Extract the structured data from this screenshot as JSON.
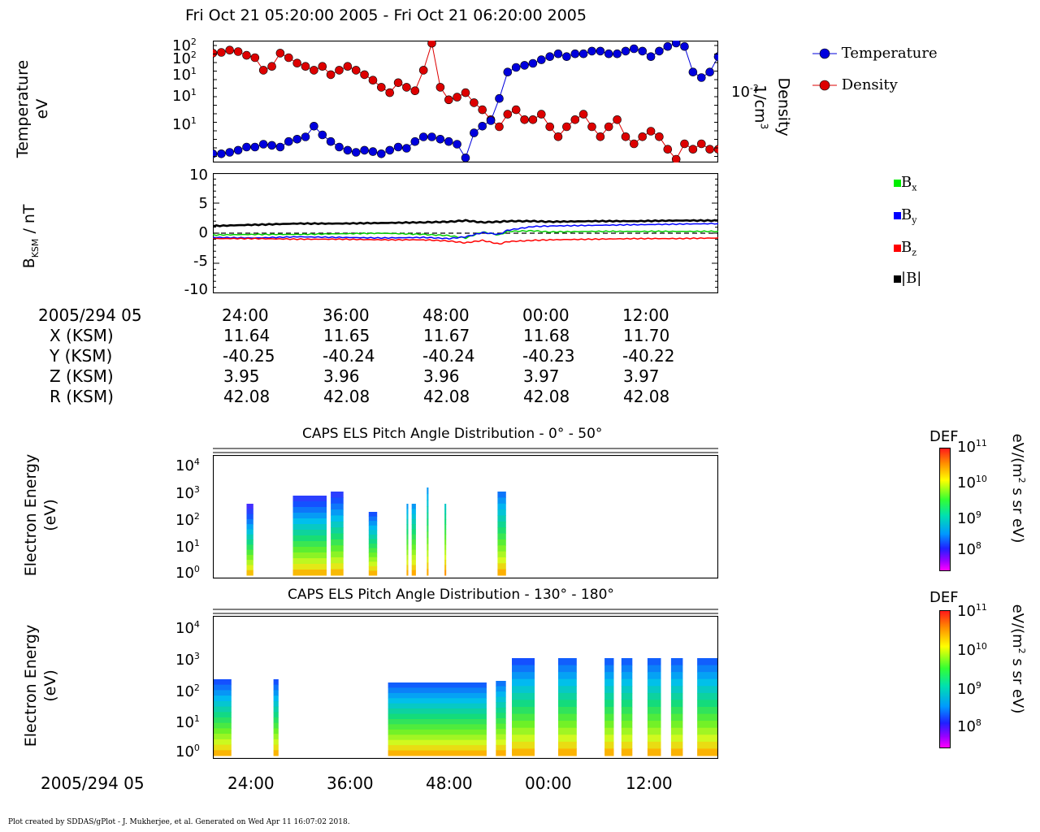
{
  "header": {
    "title": "Fri Oct 21 05:20:00 2005 - Fri Oct 21 06:20:00 2005"
  },
  "panel1": {
    "ylabel_line1": "Temperature",
    "ylabel_line2": "eV",
    "y2label_line1": "Density",
    "y2label_line2": "1/cm",
    "y2label_sup": "3",
    "y2tick_base": "10",
    "y2tick_exp": "-2",
    "yticks": [
      {
        "base": "10",
        "exp": "2"
      },
      {
        "base": "10",
        "exp": "2"
      },
      {
        "base": "10",
        "exp": "1"
      },
      {
        "base": "10",
        "exp": "1"
      },
      {
        "base": "10",
        "exp": "1"
      }
    ]
  },
  "panel2": {
    "ylabel_main": "B",
    "ylabel_sub": "KSM",
    "ylabel_rest": " / nT",
    "yticks": [
      "10",
      "5",
      "0",
      "-5",
      "-10"
    ]
  },
  "legend": {
    "temperature": "Temperature",
    "density": "Density",
    "bx_base": "B",
    "bx_sub": "x",
    "by_base": "B",
    "by_sub": "y",
    "bz_base": "B",
    "bz_sub": "z",
    "bmag": "|B|"
  },
  "ephemeris": {
    "epoch": "2005/294 05",
    "rows": [
      {
        "label": "X (KSM)",
        "values": [
          "11.64",
          "11.65",
          "11.67",
          "11.68",
          "11.70"
        ]
      },
      {
        "label": "Y (KSM)",
        "values": [
          "-40.25",
          "-40.24",
          "-40.24",
          "-40.23",
          "-40.22"
        ]
      },
      {
        "label": "Z (KSM)",
        "values": [
          "3.95",
          "3.96",
          "3.96",
          "3.97",
          "3.97"
        ]
      },
      {
        "label": "R (KSM)",
        "values": [
          "42.08",
          "42.08",
          "42.08",
          "42.08",
          "42.08"
        ]
      }
    ],
    "times": [
      "24:00",
      "36:00",
      "48:00",
      "00:00",
      "12:00"
    ]
  },
  "spec1": {
    "title": "CAPS ELS Pitch Angle Distribution - 0° - 50°",
    "ylabel_line1": "Electron Energy",
    "ylabel_line2": "(eV)",
    "yticks": [
      {
        "base": "10",
        "exp": "4"
      },
      {
        "base": "10",
        "exp": "3"
      },
      {
        "base": "10",
        "exp": "2"
      },
      {
        "base": "10",
        "exp": "1"
      },
      {
        "base": "10",
        "exp": "0"
      }
    ]
  },
  "spec2": {
    "title": "CAPS ELS Pitch Angle Distribution - 130° - 180°",
    "ylabel_line1": "Electron Energy",
    "ylabel_line2": "(eV)",
    "yticks": [
      {
        "base": "10",
        "exp": "4"
      },
      {
        "base": "10",
        "exp": "3"
      },
      {
        "base": "10",
        "exp": "2"
      },
      {
        "base": "10",
        "exp": "1"
      },
      {
        "base": "10",
        "exp": "0"
      }
    ]
  },
  "colorbar": {
    "label": "DEF",
    "unit_pre": "eV/(m",
    "unit_sup": "2",
    "unit_post": " s sr eV)",
    "ticks": [
      {
        "base": "10",
        "exp": "11"
      },
      {
        "base": "10",
        "exp": "10"
      },
      {
        "base": "10",
        "exp": "9"
      },
      {
        "base": "10",
        "exp": "8"
      }
    ]
  },
  "bottom_axis": {
    "epoch": "2005/294 05",
    "times": [
      "24:00",
      "36:00",
      "48:00",
      "00:00",
      "12:00"
    ]
  },
  "footer": {
    "text": "Plot created by SDDAS/gPlot - J. Mukherjee, et al.  Generated on Wed Apr 11 16:07:02 2018."
  },
  "colors": {
    "temperature": "#0000dd",
    "density": "#dd0000",
    "bx": "#00cc00",
    "by": "#0000ff",
    "bz": "#ff0000",
    "bmag": "#000000"
  },
  "chart_data": [
    {
      "type": "scatter",
      "title": "",
      "xlabel": "",
      "x_ticks": [
        "24:00",
        "36:00",
        "48:00",
        "00:00",
        "12:00"
      ],
      "y_scale": "log",
      "series": [
        {
          "name": "Temperature",
          "axis": "left",
          "t_min": [
            20.0,
            21.0,
            22.0,
            23.0,
            24.0,
            25.0,
            26.0,
            27.0,
            28.0,
            29.0,
            30.0,
            31.0,
            32.0,
            33.0,
            34.0,
            35.0,
            36.0,
            37.0,
            38.0,
            39.0,
            40.0,
            41.0,
            42.0,
            43.0,
            44.0,
            45.0,
            46.0,
            47.0,
            48.0,
            49.0,
            50.0,
            51.0,
            52.0,
            53.0,
            54.0,
            55.0,
            56.0,
            57.0,
            58.0,
            59.0,
            60.0,
            61.0,
            62.0,
            63.0,
            64.0,
            65.0,
            66.0,
            67.0,
            68.0,
            69.0,
            70.0,
            71.0,
            72.0,
            73.0,
            74.0,
            75.0,
            76.0,
            77.0,
            78.0,
            79.0,
            80.0
          ],
          "values": [
            4,
            4,
            4.2,
            4.5,
            5,
            5,
            5.5,
            5.3,
            5,
            6,
            6.5,
            7,
            10,
            7.5,
            6,
            5,
            4.5,
            4.2,
            4.5,
            4.3,
            4,
            4.5,
            5,
            4.8,
            6,
            7,
            7,
            6.5,
            6,
            5.5,
            3.5,
            8,
            10,
            12,
            25,
            60,
            70,
            75,
            80,
            90,
            100,
            110,
            100,
            110,
            110,
            120,
            120,
            110,
            110,
            120,
            130,
            120,
            100,
            120,
            140,
            160,
            140,
            60,
            50,
            60,
            100
          ]
        },
        {
          "name": "Density",
          "axis": "right",
          "t_min": [
            20.0,
            21.0,
            22.0,
            23.0,
            24.0,
            25.0,
            26.0,
            27.0,
            28.0,
            29.0,
            30.0,
            31.0,
            32.0,
            33.0,
            34.0,
            35.0,
            36.0,
            37.0,
            38.0,
            39.0,
            40.0,
            41.0,
            42.0,
            43.0,
            44.0,
            45.0,
            46.0,
            47.0,
            48.0,
            49.0,
            50.0,
            51.0,
            52.0,
            53.0,
            54.0,
            55.0,
            56.0,
            57.0,
            58.0,
            59.0,
            60.0,
            61.0,
            62.0,
            63.0,
            64.0,
            65.0,
            66.0,
            67.0,
            68.0,
            69.0,
            70.0,
            71.0,
            72.0,
            73.0,
            74.0,
            75.0,
            76.0,
            77.0,
            78.0,
            79.0,
            80.0
          ],
          "values": [
            0.06,
            0.062,
            0.068,
            0.064,
            0.055,
            0.05,
            0.03,
            0.035,
            0.06,
            0.05,
            0.04,
            0.035,
            0.03,
            0.035,
            0.025,
            0.03,
            0.035,
            0.03,
            0.025,
            0.02,
            0.015,
            0.012,
            0.018,
            0.015,
            0.013,
            0.03,
            0.09,
            0.015,
            0.009,
            0.01,
            0.012,
            0.008,
            0.006,
            0.004,
            0.003,
            0.005,
            0.006,
            0.004,
            0.004,
            0.005,
            0.003,
            0.002,
            0.003,
            0.004,
            0.005,
            0.003,
            0.002,
            0.003,
            0.004,
            0.002,
            0.0015,
            0.002,
            0.0025,
            0.002,
            0.0012,
            0.0008,
            0.0015,
            0.0012,
            0.0015,
            0.0012,
            0.0012
          ]
        }
      ]
    },
    {
      "type": "line",
      "title": "",
      "x_ticks": [
        "24:00",
        "36:00",
        "48:00",
        "00:00",
        "12:00"
      ],
      "ylabel": "B KSM / nT",
      "ylim": [
        -10,
        10
      ],
      "series": [
        {
          "name": "Bx",
          "t_min": [
            20,
            25,
            30,
            35,
            40,
            45,
            48,
            50,
            52,
            54,
            55,
            58,
            60,
            65,
            70,
            75,
            80
          ],
          "values": [
            -0.3,
            -0.2,
            -0.2,
            -0.1,
            0,
            -0.2,
            -0.4,
            -0.8,
            0.2,
            -0.3,
            0.3,
            0.4,
            0.2,
            0.3,
            0.3,
            0.3,
            0.3
          ]
        },
        {
          "name": "By",
          "t_min": [
            20,
            25,
            30,
            35,
            40,
            45,
            48,
            50,
            52,
            54,
            55,
            58,
            60,
            65,
            70,
            75,
            80
          ],
          "values": [
            -0.7,
            -0.8,
            -0.6,
            -0.7,
            -0.8,
            -0.7,
            -0.9,
            -0.6,
            0.1,
            -0.2,
            0.5,
            1.1,
            1.2,
            1.3,
            1.4,
            1.5,
            1.6
          ]
        },
        {
          "name": "Bz",
          "t_min": [
            20,
            25,
            30,
            35,
            40,
            45,
            48,
            50,
            52,
            54,
            55,
            58,
            60,
            65,
            70,
            75,
            80
          ],
          "values": [
            -0.9,
            -0.9,
            -1.0,
            -1.0,
            -1.1,
            -1.1,
            -1.3,
            -1.6,
            -1.2,
            -1.8,
            -1.4,
            -1.2,
            -1.1,
            -1.0,
            -0.9,
            -0.9,
            -0.8
          ]
        },
        {
          "name": "|B|",
          "t_min": [
            20,
            25,
            30,
            35,
            40,
            45,
            48,
            50,
            52,
            54,
            55,
            58,
            60,
            65,
            70,
            75,
            80
          ],
          "values": [
            1.2,
            1.4,
            1.6,
            1.6,
            1.7,
            1.8,
            1.9,
            2.1,
            1.8,
            1.9,
            2.0,
            2.0,
            1.9,
            2.0,
            2.0,
            2.1,
            2.1
          ]
        }
      ]
    }
  ]
}
